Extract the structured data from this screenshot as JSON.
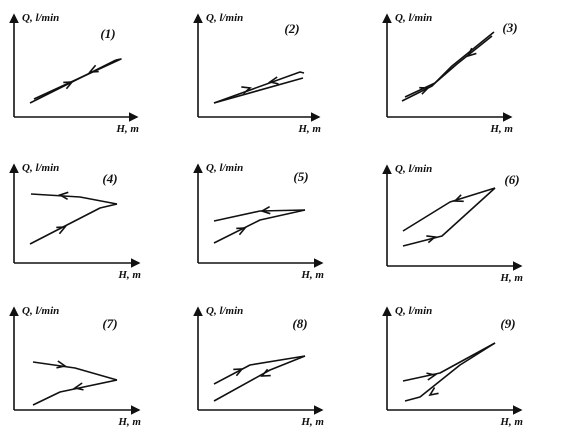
{
  "axis_labels": {
    "y": "Q, l/min",
    "x": "H, m"
  },
  "panels": [
    {
      "id": "(1)"
    },
    {
      "id": "(2)"
    },
    {
      "id": "(3)"
    },
    {
      "id": "(4)"
    },
    {
      "id": "(5)"
    },
    {
      "id": "(6)"
    },
    {
      "id": "(7)"
    },
    {
      "id": "(8)"
    },
    {
      "id": "(9)"
    }
  ],
  "colors": {
    "ink": "#111111",
    "background": "#ffffff"
  }
}
